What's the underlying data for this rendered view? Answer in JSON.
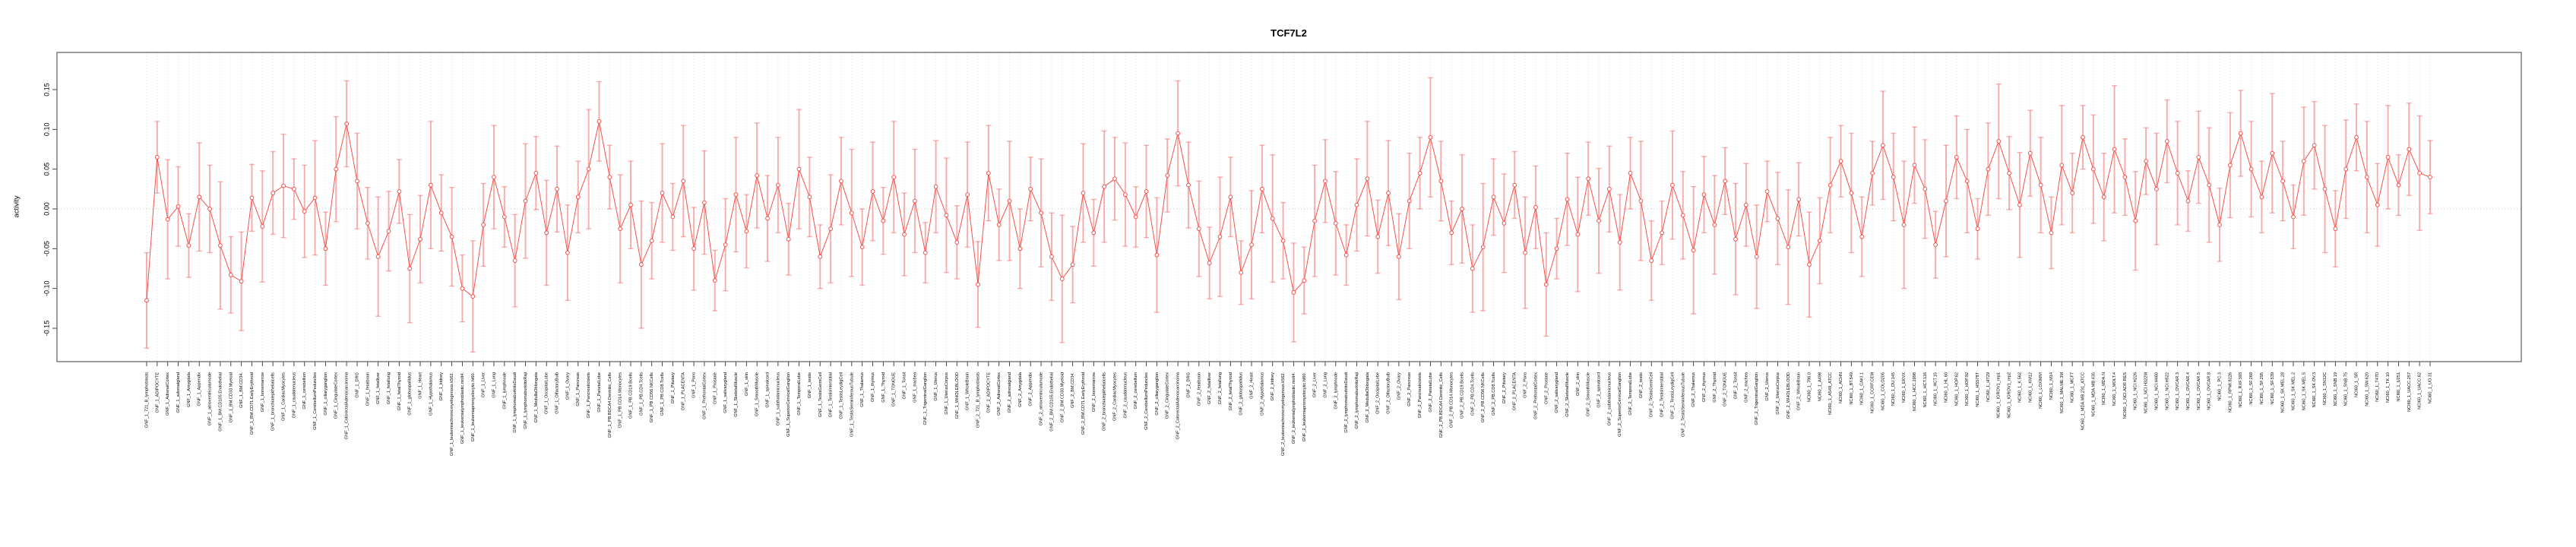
{
  "figure": {
    "title": "TCF7L2",
    "ylabel": "activity",
    "background_color": "#ffffff",
    "box_color": "#666666",
    "grid_color": "#dedede",
    "zero_line_color": "#c8c8c8",
    "tick_color": "#333333",
    "text_color": "#000000"
  },
  "chart_data": {
    "type": "line",
    "title": "TCF7L2",
    "xlabel": "",
    "ylabel": "activity",
    "ylim": [
      -0.19,
      0.19
    ],
    "yticks": [
      -0.15,
      -0.1,
      -0.05,
      0.0,
      0.05,
      0.1,
      0.15
    ],
    "grid": "vertical dotted gridline at every category; horizontal dotted line at y=0",
    "legend_position": "none",
    "x_labels_rotated_90": true,
    "marker": "open-circle",
    "has_error_bars": true,
    "series_color": "#f0524d",
    "errorbar_color": "rgba(240,85,82,0.45)",
    "categories": [
      "GNF_1_721_B_lymphoblasts",
      "GNF_1_ADIPOCYTE",
      "GNF_1_AdrenalCortex",
      "GNF_1_adrenalgland",
      "GNF_1_Amygdala",
      "GNF_1_Appendix",
      "GNF_1_atrioventricularnode",
      "GNF_1_BM.CD105.Endothelial",
      "GNF_1_BM.CD33.Myeloid",
      "GNF_1_BM.CD34.",
      "GNF_1_BM.CD71.EarlyErythroid",
      "GNF_1_bonemarrow",
      "GNF_1_bronchialepithelialcells",
      "GNF_1_CardiacMyocytes",
      "GNF_1_caudatenucleus",
      "GNF_1_cerebellum",
      "GNF_1_CerebellumPeduncles",
      "GNF_1_ciliaryganglion",
      "GNF_1_CingulateCortex",
      "GNF_1_ColorectalAdenocarcinoma",
      "GNF_1_DRG",
      "GNF_1_fetalbrain",
      "GNF_1_fetalliver",
      "GNF_1_fetallung",
      "GNF_1_fetalThyroid",
      "GNF_1_globuspallidus",
      "GNF_1_Heart",
      "GNF_1_Hypothalamus",
      "GNF_1_kidney",
      "GNF_1_leukemiachronicmyelogenous.k562.",
      "GNF_1_leukemialymphoblastic.molt4.",
      "GNF_1_leukemiapromyelocytic.hl60.",
      "GNF_1_Liver",
      "GNF_1_Lung",
      "GNF_1_lymphnode",
      "GNF_1_lymphomaburkittsDaudi",
      "GNF_1_lymphomaburkittsRaji",
      "GNF_1_MedullaOblongata",
      "GNF_1_OccipitalLobe",
      "GNF_1_OlfactoryBulb",
      "GNF_1_Ovary",
      "GNF_1_Pancreas",
      "GNF_1_Pancreaticislets",
      "GNF_1_ParietalLobe",
      "GNF_1_PB.BDCA4.Dentritic_Cells",
      "GNF_1_PB.CD14.Monocytes",
      "GNF_1_PB.CD19.Bcells",
      "GNF_1_PB.CD4.Tcells",
      "GNF_1_PB.CD56.NKCells",
      "GNF_1_PB.CD8.Tcells",
      "GNF_1_Pituitary",
      "GNF_1_PLACENTA",
      "GNF_1_Pons",
      "GNF_1_PrefrontalCortex",
      "GNF_1_Prostate",
      "GNF_1_salivarygland",
      "GNF_1_SkeletalMuscle",
      "GNF_1_skin",
      "GNF_1_SmoothMuscle",
      "GNF_1_spinalcord",
      "GNF_1_subthalamicnucleus",
      "GNF_1_SuperiorCervicalGanglion",
      "GNF_1_TemporalLobe",
      "GNF_1_testis",
      "GNF_1_TestisGermCell",
      "GNF_1_TestisInterstitial",
      "GNF_1_TestisLeydigCell",
      "GNF_1_TestisSeminiferousTubule",
      "GNF_1_Thalamus",
      "GNF_1_thymus",
      "GNF_1_Thyroid",
      "GNF_1_TONGUE",
      "GNF_1_Tonsil",
      "GNF_1_trachea",
      "GNF_1_TrigeminalGanglion",
      "GNF_1_Uterus",
      "GNF_1_UterusCorpus",
      "GNF_1_WHOLEBLOOD",
      "GNF_1_WholeBrain",
      "GNF_2_721_B_lymphoblasts",
      "GNF_2_ADIPOCYTE",
      "GNF_2_AdrenalCortex",
      "GNF_2_adrenalgland",
      "GNF_2_Amygdala",
      "GNF_2_Appendix",
      "GNF_2_atrioventricularnode",
      "GNF_2_BM.CD105.Endothelial",
      "GNF_2_BM.CD33.Myeloid",
      "GNF_2_BM.CD34.",
      "GNF_2_BM.CD71.EarlyErythroid",
      "GNF_2_bonemarrow",
      "GNF_2_bronchialepithelialcells",
      "GNF_2_CardiacMyocytes",
      "GNF_2_caudatenucleus",
      "GNF_2_cerebellum",
      "GNF_2_CerebellumPeduncles",
      "GNF_2_ciliaryganglion",
      "GNF_2_CingulateCortex",
      "GNF_2_ColorectalAdenocarcinoma",
      "GNF_2_DRG",
      "GNF_2_fetalbrain",
      "GNF_2_fetalliver",
      "GNF_2_fetallung",
      "GNF_2_fetalThyroid",
      "GNF_2_globuspallidus",
      "GNF_2_Heart",
      "GNF_2_Hypothalamus",
      "GNF_2_kidney",
      "GNF_2_leukemiachronicmyelogenous.k562.",
      "GNF_2_leukemialymphoblastic.molt4.",
      "GNF_2_leukemiapromyelocytic.hl60.",
      "GNF_2_Liver",
      "GNF_2_Lung",
      "GNF_2_lymphnode",
      "GNF_2_lymphomaburkittsDaudi",
      "GNF_2_lymphomaburkittsRaji",
      "GNF_2_MedullaOblongata",
      "GNF_2_OccipitalLobe",
      "GNF_2_OlfactoryBulb",
      "GNF_2_Ovary",
      "GNF_2_Pancreas",
      "GNF_2_Pancreaticislets",
      "GNF_2_ParietalLobe",
      "GNF_2_PB.BDCA4.Dentritic_Cells",
      "GNF_2_PB.CD14.Monocytes",
      "GNF_2_PB.CD19.Bcells",
      "GNF_2_PB.CD4.Tcells",
      "GNF_2_PB.CD56.NKCells",
      "GNF_2_PB.CD8.Tcells",
      "GNF_2_Pituitary",
      "GNF_2_PLACENTA",
      "GNF_2_Pons",
      "GNF_2_PrefrontalCortex",
      "GNF_2_Prostate",
      "GNF_2_salivarygland",
      "GNF_2_SkeletalMuscle",
      "GNF_2_skin",
      "GNF_2_SmoothMuscle",
      "GNF_2_spinalcord",
      "GNF_2_subthalamicnucleus",
      "GNF_2_SuperiorCervicalGanglion",
      "GNF_2_TemporalLobe",
      "GNF_2_testis",
      "GNF_2_TestisGermCell",
      "GNF_2_TestisInterstitial",
      "GNF_2_TestisLeydigCell",
      "GNF_2_TestisSeminiferousTubule",
      "GNF_2_Thalamus",
      "GNF_2_thymus",
      "GNF_2_Thyroid",
      "GNF_2_TONGUE",
      "GNF_2_Tonsil",
      "GNF_2_trachea",
      "GNF_2_TrigeminalGanglion",
      "GNF_2_Uterus",
      "GNF_2_UterusCorpus",
      "GNF_2_WHOLEBLOOD",
      "GNF_2_WholeBrain",
      "NCI60_1_786.0",
      "NCI60_1_A498",
      "NCI60_1_A549_ATCC",
      "NCI60_1_ACHN",
      "NCI60_1_BT.549",
      "NCI60_1_CAKI.1",
      "NCI60_1_CCRF.CEM",
      "NCI60_1_COLO205",
      "NCI60_1_DU.145",
      "NCI60_1_EKVX",
      "NCI60_1_HCC.2998",
      "NCI60_1_HCT.116",
      "NCI60_1_HCT.15",
      "NCI60_1_HL.60",
      "NCI60_1_HOP.62",
      "NCI60_1_HOP.92",
      "NCI60_1_HS578T",
      "NCI60_1_HT29",
      "NCI60_1_IGROV1_rep1",
      "NCI60_1_IGROV1_rep2",
      "NCI60_1_K.562",
      "NCI60_1_KM12",
      "NCI60_1_LOXIMVI",
      "NCI60_1_M14",
      "NCI60_1_MALME.3M",
      "NCI60_1_MCF7",
      "NCI60_1_MDA.MB.231_ATCC",
      "NCI60_1_MDA.MB.435",
      "NCI60_1_MDA.N",
      "NCI60_1_MOLT.4",
      "NCI60_1_NCI.ADR.RES",
      "NCI60_1_NCI.H226",
      "NCI60_1_NCI.H322M",
      "NCI60_1_NCI.H460",
      "NCI60_1_NCI.H522",
      "NCI60_1_OVCAR.3",
      "NCI60_1_OVCAR.4",
      "NCI60_1_OVCAR.5",
      "NCI60_1_OVCAR.8",
      "NCI60_1_PC.3",
      "NCI60_1_RPMI.8226",
      "NCI60_1_RXF.393",
      "NCI60_1_SF.268",
      "NCI60_1_SF.295",
      "NCI60_1_SF.539",
      "NCI60_1_SK.MEL.28",
      "NCI60_1_SK.MEL.2",
      "NCI60_1_SK.MEL.5",
      "NCI60_1_SK.OV.3",
      "NCI60_1_SN12C",
      "NCI60_1_SNB.19",
      "NCI60_1_SNB.75",
      "NCI60_1_SR",
      "NCI60_1_SW.620",
      "NCI60_1_T47D",
      "NCI60_1_TK.10",
      "NCI60_1_U251",
      "NCI60_1_UACC.257",
      "NCI60_1_UACC.62",
      "NCI60_1_UO.31"
    ],
    "values": [
      -0.115,
      0.065,
      -0.013,
      0.003,
      -0.046,
      0.015,
      0.0,
      -0.046,
      -0.083,
      -0.091,
      0.014,
      -0.022,
      0.02,
      0.029,
      0.025,
      -0.003,
      0.014,
      -0.05,
      0.05,
      0.107,
      0.035,
      -0.018,
      -0.06,
      -0.028,
      0.022,
      -0.075,
      -0.038,
      0.03,
      -0.005,
      -0.035,
      -0.1,
      -0.11,
      -0.02,
      0.04,
      -0.01,
      -0.065,
      0.01,
      0.045,
      -0.03,
      0.025,
      -0.055,
      0.015,
      0.05,
      0.11,
      0.04,
      -0.025,
      0.005,
      -0.07,
      -0.04,
      0.02,
      -0.01,
      0.035,
      -0.05,
      0.008,
      -0.09,
      -0.045,
      0.018,
      -0.028,
      0.042,
      -0.012,
      0.03,
      -0.038,
      0.05,
      0.015,
      -0.06,
      -0.025,
      0.035,
      -0.005,
      -0.048,
      0.022,
      -0.015,
      0.04,
      -0.032,
      0.01,
      -0.055,
      0.028,
      -0.008,
      -0.042,
      0.018,
      -0.095,
      0.045,
      -0.02,
      0.01,
      -0.05,
      0.025,
      -0.005,
      -0.06,
      -0.088,
      -0.07,
      0.02,
      -0.03,
      0.028,
      0.038,
      0.018,
      -0.01,
      0.022,
      -0.058,
      0.042,
      0.095,
      0.03,
      -0.025,
      -0.068,
      -0.035,
      0.015,
      -0.08,
      -0.045,
      0.025,
      -0.012,
      -0.04,
      -0.105,
      -0.09,
      -0.015,
      0.035,
      -0.018,
      -0.058,
      0.005,
      0.038,
      -0.035,
      0.02,
      -0.06,
      0.01,
      0.045,
      0.09,
      0.035,
      -0.03,
      0.0,
      -0.075,
      -0.048,
      0.015,
      -0.018,
      0.03,
      -0.055,
      0.002,
      -0.095,
      -0.05,
      0.012,
      -0.032,
      0.038,
      -0.015,
      0.025,
      -0.042,
      0.045,
      0.01,
      -0.065,
      -0.03,
      0.03,
      -0.008,
      -0.052,
      0.018,
      -0.02,
      0.035,
      -0.038,
      0.005,
      -0.06,
      0.022,
      -0.012,
      -0.048,
      0.012,
      -0.07,
      -0.04,
      0.03,
      0.06,
      0.02,
      -0.035,
      0.045,
      0.08,
      0.04,
      -0.02,
      0.055,
      0.025,
      -0.045,
      0.01,
      0.065,
      0.035,
      -0.025,
      0.05,
      0.085,
      0.045,
      0.005,
      0.07,
      0.03,
      -0.03,
      0.055,
      0.02,
      0.09,
      0.05,
      0.015,
      0.075,
      0.04,
      -0.015,
      0.06,
      0.025,
      0.085,
      0.045,
      0.01,
      0.065,
      0.03,
      -0.02,
      0.055,
      0.095,
      0.05,
      0.015,
      0.07,
      0.035,
      -0.01,
      0.06,
      0.08,
      0.025,
      -0.025,
      0.05,
      0.09,
      0.04,
      0.005,
      0.065,
      0.03,
      0.075,
      0.045,
      0.04
    ],
    "errors": [
      0.06,
      0.045,
      0.075,
      0.05,
      0.04,
      0.068,
      0.055,
      0.08,
      0.048,
      0.062,
      0.042,
      0.07,
      0.052,
      0.065,
      0.038,
      0.058,
      0.072,
      0.046,
      0.066,
      0.054,
      0.06,
      0.045,
      0.075,
      0.05,
      0.04,
      0.068,
      0.055,
      0.08,
      0.048,
      0.062,
      0.042,
      0.07,
      0.052,
      0.065,
      0.038,
      0.058,
      0.072,
      0.046,
      0.066,
      0.054,
      0.06,
      0.045,
      0.075,
      0.05,
      0.04,
      0.068,
      0.055,
      0.08,
      0.048,
      0.062,
      0.042,
      0.07,
      0.052,
      0.065,
      0.038,
      0.058,
      0.072,
      0.046,
      0.066,
      0.054,
      0.06,
      0.045,
      0.075,
      0.05,
      0.04,
      0.068,
      0.055,
      0.08,
      0.048,
      0.062,
      0.042,
      0.07,
      0.052,
      0.065,
      0.038,
      0.058,
      0.072,
      0.046,
      0.066,
      0.054,
      0.06,
      0.045,
      0.075,
      0.05,
      0.04,
      0.068,
      0.055,
      0.08,
      0.048,
      0.062,
      0.042,
      0.07,
      0.052,
      0.065,
      0.038,
      0.058,
      0.072,
      0.046,
      0.066,
      0.054,
      0.06,
      0.045,
      0.075,
      0.05,
      0.04,
      0.068,
      0.055,
      0.08,
      0.048,
      0.062,
      0.042,
      0.07,
      0.052,
      0.065,
      0.038,
      0.058,
      0.072,
      0.046,
      0.066,
      0.054,
      0.06,
      0.045,
      0.075,
      0.05,
      0.04,
      0.068,
      0.055,
      0.08,
      0.048,
      0.062,
      0.042,
      0.07,
      0.052,
      0.065,
      0.038,
      0.058,
      0.072,
      0.046,
      0.066,
      0.054,
      0.06,
      0.045,
      0.075,
      0.05,
      0.04,
      0.068,
      0.055,
      0.08,
      0.048,
      0.062,
      0.042,
      0.07,
      0.052,
      0.065,
      0.038,
      0.058,
      0.072,
      0.046,
      0.066,
      0.054,
      0.06,
      0.045,
      0.075,
      0.05,
      0.04,
      0.068,
      0.055,
      0.08,
      0.048,
      0.062,
      0.042,
      0.07,
      0.052,
      0.065,
      0.038,
      0.058,
      0.072,
      0.046,
      0.066,
      0.054,
      0.06,
      0.045,
      0.075,
      0.05,
      0.04,
      0.068,
      0.055,
      0.08,
      0.048,
      0.062,
      0.042,
      0.07,
      0.052,
      0.065,
      0.038,
      0.058,
      0.072,
      0.046,
      0.066,
      0.054,
      0.06,
      0.045,
      0.075,
      0.05,
      0.04,
      0.068,
      0.055,
      0.08,
      0.048,
      0.062,
      0.042,
      0.07,
      0.052,
      0.065,
      0.038,
      0.058,
      0.072,
      0.046
    ]
  }
}
